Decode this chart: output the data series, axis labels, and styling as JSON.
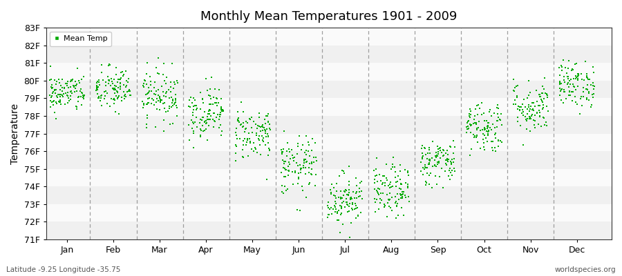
{
  "title": "Monthly Mean Temperatures 1901 - 2009",
  "ylabel": "Temperature",
  "bottom_left_label": "Latitude -9.25 Longitude -35.75",
  "bottom_right_label": "worldspecies.org",
  "legend_label": "Mean Temp",
  "ylim": [
    71,
    83
  ],
  "ytick_labels": [
    "71F",
    "72F",
    "73F",
    "74F",
    "75F",
    "76F",
    "77F",
    "78F",
    "79F",
    "80F",
    "81F",
    "82F",
    "83F"
  ],
  "months": [
    "Jan",
    "Feb",
    "Mar",
    "Apr",
    "May",
    "Jun",
    "Jul",
    "Aug",
    "Sep",
    "Oct",
    "Nov",
    "Dec"
  ],
  "marker_color": "#00aa00",
  "bg_color": "#ffffff",
  "band_colors": [
    "#f0f0f0",
    "#fafafa"
  ],
  "dashed_line_color": "#888888",
  "n_years": 109,
  "monthly_means": [
    79.3,
    79.5,
    79.2,
    78.2,
    77.0,
    75.1,
    73.3,
    73.7,
    75.4,
    77.4,
    78.5,
    79.8
  ],
  "monthly_stds": [
    0.55,
    0.65,
    0.75,
    0.75,
    0.75,
    0.85,
    0.75,
    0.75,
    0.65,
    0.75,
    0.75,
    0.65
  ],
  "seed": 42
}
